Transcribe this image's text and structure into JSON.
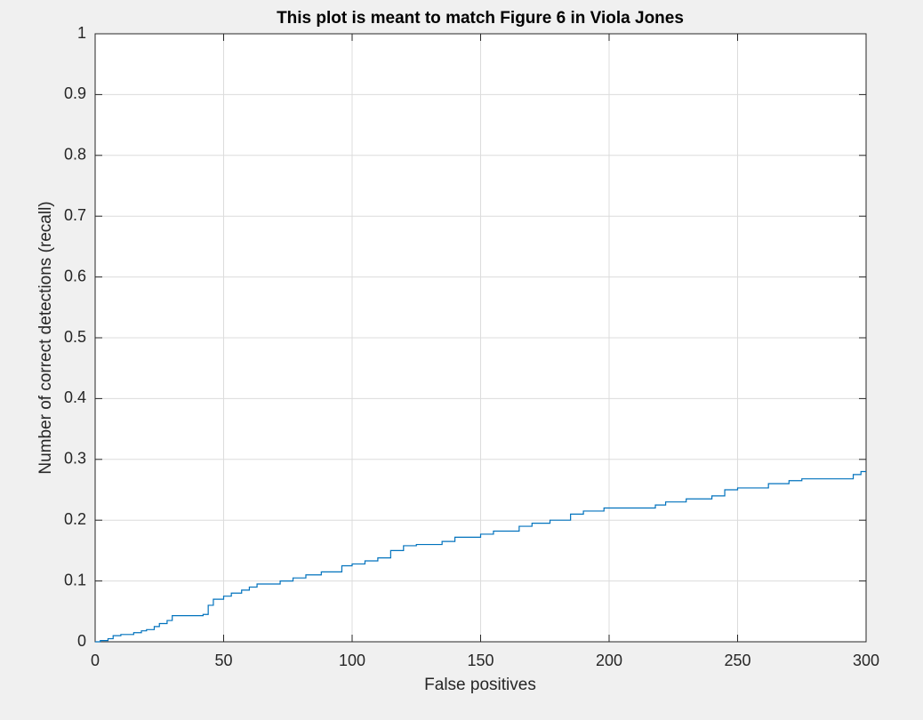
{
  "chart_data": {
    "type": "line",
    "title": "This plot is meant to match Figure 6 in Viola Jones",
    "x_label": "False positives",
    "y_label": "Number of correct detections (recall)",
    "xlim": [
      0,
      300
    ],
    "ylim": [
      0,
      1
    ],
    "xticks": [
      0,
      50,
      100,
      150,
      200,
      250,
      300
    ],
    "yticks": [
      0,
      0.1,
      0.2,
      0.3,
      0.4,
      0.5,
      0.6,
      0.7,
      0.8,
      0.9,
      1
    ],
    "grid": true,
    "step": true,
    "series": [
      {
        "color": "#0072bd",
        "x": [
          0,
          2,
          5,
          7,
          10,
          15,
          18,
          20,
          23,
          25,
          28,
          30,
          42,
          44,
          46,
          50,
          53,
          57,
          60,
          63,
          72,
          77,
          82,
          88,
          96,
          100,
          105,
          110,
          115,
          120,
          125,
          135,
          140,
          150,
          155,
          165,
          170,
          177,
          185,
          190,
          198,
          218,
          222,
          230,
          240,
          245,
          250,
          262,
          270,
          275,
          295,
          298,
          300
        ],
        "values": [
          0,
          0.002,
          0.005,
          0.01,
          0.012,
          0.015,
          0.018,
          0.02,
          0.025,
          0.03,
          0.035,
          0.043,
          0.045,
          0.06,
          0.07,
          0.075,
          0.08,
          0.085,
          0.09,
          0.095,
          0.1,
          0.105,
          0.11,
          0.115,
          0.125,
          0.128,
          0.133,
          0.138,
          0.15,
          0.158,
          0.16,
          0.165,
          0.172,
          0.177,
          0.182,
          0.19,
          0.195,
          0.2,
          0.21,
          0.215,
          0.22,
          0.225,
          0.23,
          0.235,
          0.24,
          0.25,
          0.253,
          0.26,
          0.265,
          0.268,
          0.275,
          0.28,
          0.28
        ]
      }
    ]
  }
}
